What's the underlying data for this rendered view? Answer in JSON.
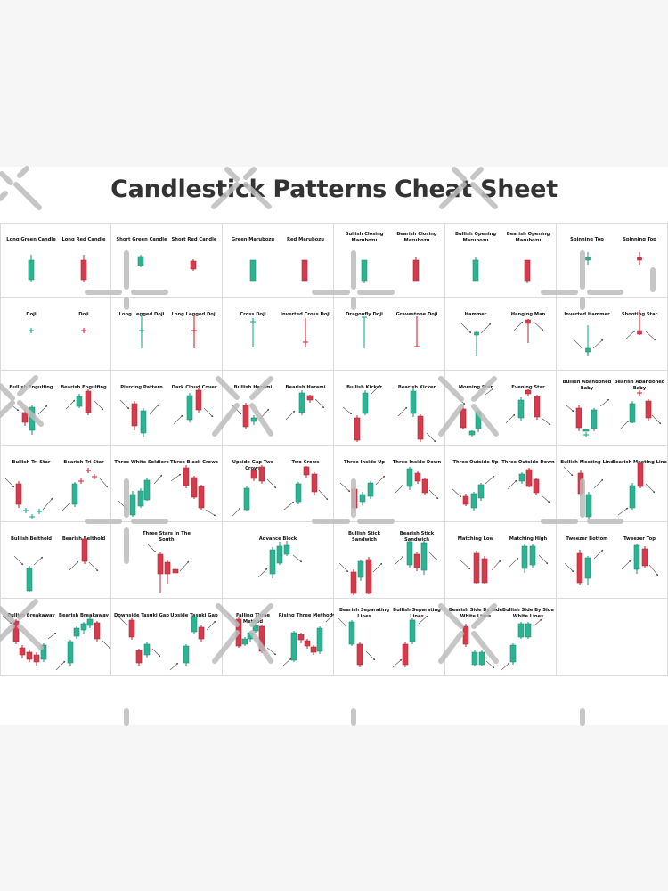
{
  "title": "Candlestick Patterns Cheat Sheet",
  "colors": {
    "bull": "#2bb393",
    "bear": "#d63a4b",
    "border": "#dcdcdc",
    "title": "#333333"
  },
  "cells": [
    {
      "labels": [
        "Long Green Candle",
        "Long Red Candle"
      ]
    },
    {
      "labels": [
        "Short Green Candle",
        "Short Red Candle"
      ]
    },
    {
      "labels": [
        "Green Marubozu",
        "Red Marubozu"
      ]
    },
    {
      "labels": [
        "Bullish Closing Marubozu",
        "Bearish Closing Marubozu"
      ]
    },
    {
      "labels": [
        "Bullish Opening Marubozu",
        "Bearish Opening Marubozu"
      ]
    },
    {
      "labels": [
        "Spinning Top",
        "Spinning Top"
      ]
    },
    {
      "labels": [
        "Doji",
        "Doji"
      ]
    },
    {
      "labels": [
        "Long Legged Doji",
        "Long Legged Doji"
      ]
    },
    {
      "labels": [
        "Cross Doji",
        "Inverted Cross Doji"
      ]
    },
    {
      "labels": [
        "Dragonfly Doji",
        "Gravestone Doji"
      ]
    },
    {
      "labels": [
        "Hammer",
        "Hanging Man"
      ]
    },
    {
      "labels": [
        "Inverted Hammer",
        "Shooting Star"
      ]
    },
    {
      "labels": [
        "Bullish Engulfing",
        "Bearish Engulfing"
      ]
    },
    {
      "labels": [
        "Piercing Pattern",
        "Dark Cloud Cover"
      ]
    },
    {
      "labels": [
        "Bullish Harami",
        "Bearish Harami"
      ]
    },
    {
      "labels": [
        "Bullish Kicker",
        "Bearish Kicker"
      ]
    },
    {
      "labels": [
        "Morning Star",
        "Evening Star"
      ]
    },
    {
      "labels": [
        "Bullish Abandoned Baby",
        "Bearish Abandoned Baby"
      ]
    },
    {
      "labels": [
        "Bullish Tri Star",
        "Bearish Tri Star"
      ]
    },
    {
      "labels": [
        "Three White Soldiers",
        "Three Black Crows"
      ]
    },
    {
      "labels": [
        "Upside Gap Two Crows",
        "Two Crows"
      ]
    },
    {
      "labels": [
        "Three Inside Up",
        "Three Inside Down"
      ]
    },
    {
      "labels": [
        "Three Outside Up",
        "Three Outside Down"
      ]
    },
    {
      "labels": [
        "Bullish Meeting Line",
        "Bearish Meeting Line"
      ]
    },
    {
      "labels": [
        "Bullish Belthold",
        "Bearish Belthold"
      ]
    },
    {
      "labels": [
        "Three Stars In The South"
      ]
    },
    {
      "labels": [
        "Advance Block"
      ]
    },
    {
      "labels": [
        "Bullish Stick Sandwich",
        "Bearish Stick Sandwich"
      ]
    },
    {
      "labels": [
        "Matching Low",
        "Matching High"
      ]
    },
    {
      "labels": [
        "Tweezer Bottom",
        "Tweezer Top"
      ]
    },
    {
      "labels": [
        "Bullish Breakaway",
        "Bearish Breakaway"
      ]
    },
    {
      "labels": [
        "Downside Tasuki Gap",
        "Upside Tasuki Gap"
      ]
    },
    {
      "labels": [
        "Falling Three Method",
        "Rising Three Method"
      ]
    },
    {
      "labels": [
        "Bearish Separating Lines",
        "Bullish Separating Lines"
      ]
    },
    {
      "labels": [
        "Bearish Side By Side White Lines",
        "Bullish Side By Side White Lines"
      ]
    },
    {
      "labels": []
    }
  ]
}
